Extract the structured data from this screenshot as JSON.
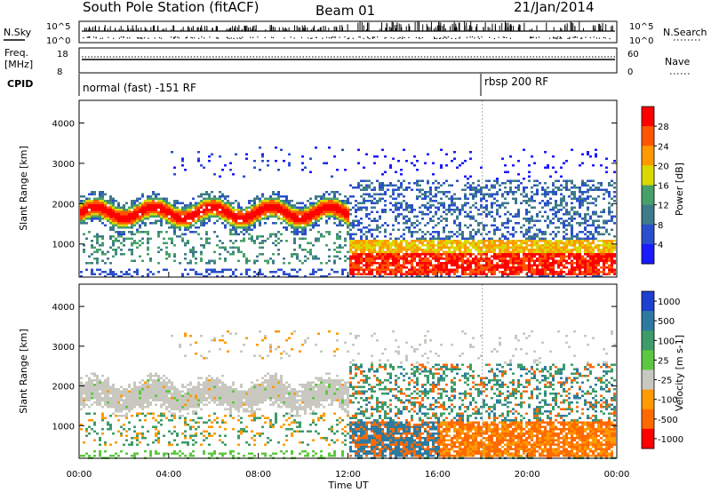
{
  "header": {
    "station": "South Pole Station (fitACF)",
    "beam": "Beam 01",
    "date": "21/Jan/2014"
  },
  "top_panels": {
    "nsky_label": "N.Sky",
    "nsearch_label": "N.Search",
    "nsky_ticks": [
      "10^5",
      "10^0"
    ],
    "nsearch_ticks": [
      "10^5",
      "10^0"
    ],
    "freq_label": "Freq.",
    "freq_unit": "[MHz]",
    "freq_ticks": [
      "18",
      "8"
    ],
    "nave_label": "Nave",
    "nave_ticks": [
      "60",
      "0"
    ],
    "cpid_label": "CPID",
    "modes": [
      {
        "name": "normal (fast) -151 RF",
        "start": "00:00"
      },
      {
        "name": "rbsp 200 RF",
        "start": "18:00"
      }
    ]
  },
  "colors": {
    "power": [
      "#1a1aff",
      "#2a4fcc",
      "#3d7a8a",
      "#47a06a",
      "#d9d900",
      "#ff9900",
      "#ff5500",
      "#ff0000"
    ],
    "velocity": [
      "#1e3fd0",
      "#2c7aa0",
      "#3c9c6a",
      "#5cc840",
      "#c8c8c0",
      "#ff9a00",
      "#ff6a00",
      "#ff0000"
    ]
  },
  "chart_data": [
    {
      "type": "heatmap",
      "title": "",
      "xlabel": "",
      "ylabel": "Slant Range [km]",
      "xlim": [
        "00:00",
        "24:00"
      ],
      "ylim": [
        180,
        4560
      ],
      "y_ticks": [
        "1000",
        "2000",
        "3000",
        "4000"
      ],
      "colorbar": {
        "label": "Power [dB]",
        "ticks": [
          "4",
          "8",
          "12",
          "16",
          "20",
          "24",
          "28"
        ]
      },
      "features": [
        {
          "time": [
            "00:00",
            "12:00"
          ],
          "range_km": [
            1550,
            2200
          ],
          "power_db": 24
        },
        {
          "time": [
            "12:00",
            "24:00"
          ],
          "range_km": [
            300,
            1200
          ],
          "power_db": 22
        },
        {
          "time": [
            "13:00",
            "24:00"
          ],
          "range_km": [
            1200,
            2600
          ],
          "power_db": 8
        }
      ]
    },
    {
      "type": "heatmap",
      "title": "",
      "xlabel": "Time UT",
      "ylabel": "Slant Range [km]",
      "xlim": [
        "00:00",
        "24:00"
      ],
      "ylim": [
        180,
        4560
      ],
      "x_ticks": [
        "00:00",
        "04:00",
        "08:00",
        "12:00",
        "16:00",
        "20:00",
        "00:00"
      ],
      "y_ticks": [
        "1000",
        "2000",
        "3000",
        "4000"
      ],
      "colorbar": {
        "label": "Velocity [m s-1]",
        "ticks": [
          "1000",
          "500",
          "100",
          "25",
          "-25",
          "-100",
          "-500",
          "-1000"
        ]
      },
      "features": [
        {
          "time": [
            "00:00",
            "12:00"
          ],
          "range_km": [
            1550,
            2200
          ],
          "velocity_ms": 0
        },
        {
          "time": [
            "12:00",
            "24:00"
          ],
          "range_km": [
            300,
            1200
          ],
          "velocity_ms": -300
        },
        {
          "time": [
            "12:00",
            "16:00"
          ],
          "range_km": [
            300,
            1100
          ],
          "velocity_ms": 400
        }
      ]
    }
  ]
}
